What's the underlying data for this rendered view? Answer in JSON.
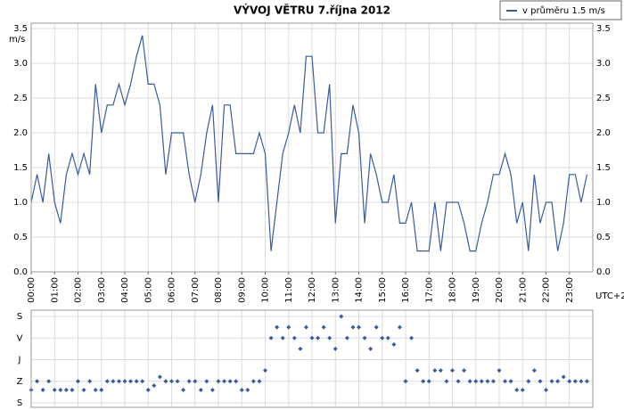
{
  "chart_data": [
    {
      "type": "line",
      "title": "VÝVOJ VĚTRU  7.října 2012",
      "y_label": "m/s",
      "x_label": "UTC+2",
      "legend_corner": "top-right",
      "grid": true,
      "categories": [
        "00:00",
        null,
        null,
        null,
        "01:00",
        null,
        null,
        null,
        "02:00",
        null,
        null,
        null,
        "03:00",
        null,
        null,
        null,
        "04:00",
        null,
        null,
        null,
        "05:00",
        null,
        null,
        null,
        "06:00",
        null,
        null,
        null,
        "07:00",
        null,
        null,
        null,
        "08:00",
        null,
        null,
        null,
        "09:00",
        null,
        null,
        null,
        "10:00",
        null,
        null,
        null,
        "11:00",
        null,
        null,
        null,
        "12:00",
        null,
        null,
        null,
        "13:00",
        null,
        null,
        null,
        "14:00",
        null,
        null,
        null,
        "15:00",
        null,
        null,
        null,
        "16:00",
        null,
        null,
        null,
        "17:00",
        null,
        null,
        null,
        "18:00",
        null,
        null,
        null,
        "19:00",
        null,
        null,
        null,
        "20:00",
        null,
        null,
        null,
        "21:00",
        null,
        null,
        null,
        "22:00",
        null,
        null,
        null,
        "23:00",
        null,
        null,
        null
      ],
      "series": [
        {
          "name": "v průměru 1.5 m/s",
          "color": "#3a5ba0",
          "values": [
            1.0,
            1.4,
            1.0,
            1.7,
            1.0,
            0.7,
            1.4,
            1.7,
            1.4,
            1.7,
            1.4,
            2.7,
            2.0,
            2.4,
            2.4,
            2.7,
            2.4,
            2.7,
            3.1,
            3.4,
            2.7,
            2.7,
            2.4,
            1.4,
            2.0,
            2.0,
            2.0,
            1.4,
            1.0,
            1.4,
            2.0,
            2.4,
            1.0,
            2.4,
            2.4,
            1.7,
            1.7,
            1.7,
            1.7,
            2.0,
            1.7,
            0.3,
            1.0,
            1.7,
            2.0,
            2.4,
            2.0,
            3.1,
            3.1,
            2.0,
            2.0,
            2.7,
            0.7,
            1.7,
            1.7,
            2.4,
            2.0,
            0.7,
            1.7,
            1.4,
            1.0,
            1.0,
            1.4,
            0.7,
            0.7,
            1.0,
            0.3,
            0.3,
            0.3,
            1.0,
            0.3,
            1.0,
            1.0,
            1.0,
            0.7,
            0.3,
            0.3,
            0.7,
            1.0,
            1.4,
            1.4,
            1.7,
            1.4,
            0.7,
            1.0,
            0.3,
            1.4,
            0.7,
            1.0,
            1.0,
            0.3,
            0.7,
            1.4,
            1.4,
            1.0,
            1.4
          ]
        }
      ],
      "ylim": [
        0,
        3.5
      ],
      "yticks": [
        {
          "value": 0,
          "label": "0.0"
        },
        0.5,
        {
          "value": 1,
          "label": "1.0"
        },
        1.5,
        {
          "value": 2,
          "label": "2.0"
        },
        2.5,
        {
          "value": 3,
          "label": "3.0"
        },
        3.5
      ]
    },
    {
      "type": "scatter",
      "color": "#3a5ba0",
      "grid": true,
      "values": [
        0.6,
        1.0,
        0.6,
        1.0,
        0.6,
        0.6,
        0.6,
        0.6,
        1.0,
        0.6,
        1.0,
        0.6,
        0.6,
        1.0,
        1.0,
        1.0,
        1.0,
        1.0,
        1.0,
        1.0,
        0.6,
        0.8,
        1.2,
        1.0,
        1.0,
        1.0,
        0.6,
        1.0,
        1.0,
        0.6,
        1.0,
        0.6,
        1.0,
        1.0,
        1.0,
        1.0,
        0.6,
        0.6,
        1.0,
        1.0,
        1.5,
        3.0,
        3.5,
        3.0,
        3.5,
        3.0,
        2.5,
        3.5,
        3.0,
        3.0,
        3.5,
        3.0,
        2.5,
        4.0,
        3.0,
        3.5,
        3.5,
        3.0,
        2.5,
        3.5,
        3.0,
        3.0,
        2.7,
        3.5,
        1.0,
        3.0,
        1.5,
        1.0,
        1.0,
        1.5,
        1.5,
        1.0,
        1.5,
        1.0,
        1.5,
        1.0,
        1.0,
        1.0,
        1.0,
        1.0,
        1.5,
        1.0,
        1.0,
        0.6,
        0.6,
        1.0,
        1.5,
        1.0,
        0.6,
        1.0,
        1.0,
        1.2,
        1.0,
        1.0,
        1.0,
        1.0
      ],
      "ylim": [
        0,
        4
      ],
      "yticks": [
        {
          "value": 0,
          "label": "S"
        },
        {
          "value": 1,
          "label": "Z"
        },
        {
          "value": 2,
          "label": "J"
        },
        {
          "value": 3,
          "label": "V"
        },
        {
          "value": 4,
          "label": "S"
        }
      ]
    }
  ]
}
